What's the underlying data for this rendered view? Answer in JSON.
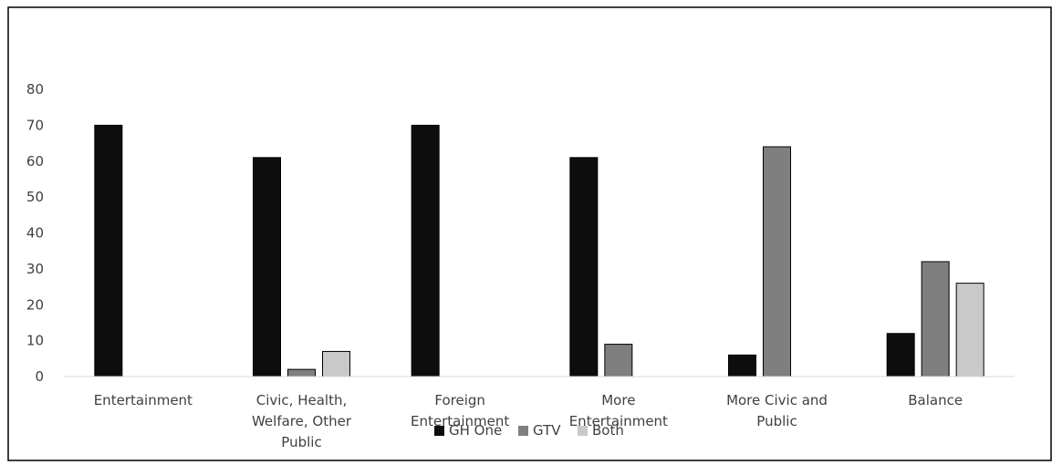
{
  "chart_data": {
    "type": "bar",
    "title": "",
    "xlabel": "",
    "ylabel": "",
    "ylim": [
      0,
      80
    ],
    "yticks": [
      0,
      10,
      20,
      30,
      40,
      50,
      60,
      70,
      80
    ],
    "grid": false,
    "legend_position": "bottom",
    "categories": [
      "Entertainment",
      "Civic, Health, Welfare, Other Public",
      "Foreign Entertainment",
      "More Entertainment",
      "More Civic and Public",
      "Balance"
    ],
    "category_lines": [
      [
        "Entertainment"
      ],
      [
        "Civic, Health,",
        "Welfare, Other",
        "Public"
      ],
      [
        "Foreign",
        "Entertainment"
      ],
      [
        "More",
        "Entertainment"
      ],
      [
        "More Civic and",
        "Public"
      ],
      [
        "Balance"
      ]
    ],
    "series": [
      {
        "name": "GH One",
        "color": "#0d0d0d",
        "values": [
          70,
          61,
          70,
          61,
          6,
          12
        ]
      },
      {
        "name": "GTV",
        "color": "#7f7f7f",
        "values": [
          0,
          2,
          0,
          9,
          64,
          32
        ]
      },
      {
        "name": "Both",
        "color": "#c9c9c9",
        "values": [
          0,
          7,
          0,
          0,
          0,
          26
        ]
      }
    ]
  }
}
